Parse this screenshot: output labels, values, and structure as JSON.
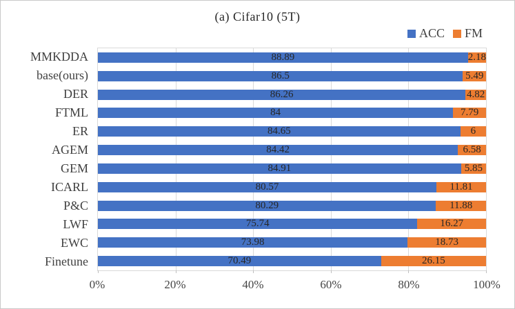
{
  "chart_data": {
    "type": "bar",
    "subtype": "horizontal-100pct-stacked",
    "title": "(a)  Cifar10 (5T)",
    "categories": [
      "MMKDDA",
      "base(ours)",
      "DER",
      "FTML",
      "ER",
      "AGEM",
      "GEM",
      "ICARL",
      "P&C",
      "LWF",
      "EWC",
      "Finetune"
    ],
    "series": [
      {
        "name": "ACC",
        "color": "#4472C4",
        "values": [
          88.89,
          86.5,
          86.26,
          84,
          84.65,
          84.42,
          84.91,
          80.57,
          80.29,
          75.74,
          73.98,
          70.49
        ]
      },
      {
        "name": "FM",
        "color": "#ED7D31",
        "values": [
          2.18,
          5.49,
          4.82,
          7.79,
          6,
          6.58,
          5.85,
          11.81,
          11.88,
          16.27,
          18.73,
          26.15
        ]
      }
    ],
    "x_ticks": [
      "0%",
      "20%",
      "40%",
      "60%",
      "80%",
      "100%"
    ],
    "xlim": [
      0,
      100
    ],
    "legend_position": "top-right",
    "grid": "vertical",
    "bar_labels": "centered-in-segment",
    "colors": {
      "acc": "#4472C4",
      "fm": "#ED7D31",
      "gridline": "#d9d9d9",
      "label_text": "#262626"
    }
  }
}
